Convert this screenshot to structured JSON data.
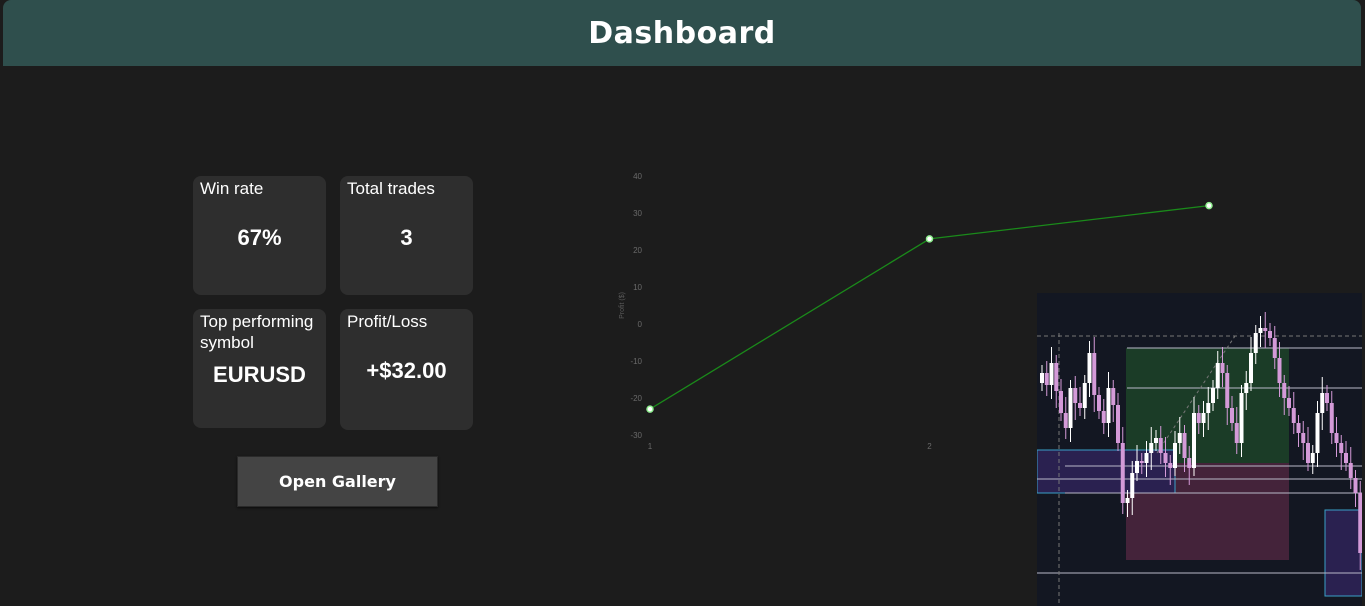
{
  "header": {
    "title": "Dashboard"
  },
  "stats": {
    "win_rate": {
      "label": "Win rate",
      "value": "67%"
    },
    "total_trades": {
      "label": "Total trades",
      "value": "3"
    },
    "top_symbol": {
      "label": "Top performing symbol",
      "value": "EURUSD"
    },
    "profit_loss": {
      "label": "Profit/Loss",
      "value": "+$32.00"
    }
  },
  "gallery_button": {
    "label": "Open Gallery"
  },
  "colors": {
    "header_bg": "#2f4f4d",
    "card_bg": "#2e2e2e",
    "line": "#1a8a1a",
    "point": "#90ee90"
  },
  "chart_data": {
    "type": "line",
    "ylabel": "Profit ($)",
    "xlabel": "",
    "x": [
      1,
      2,
      3
    ],
    "x_tick_labels": [
      "1",
      "2"
    ],
    "y_ticks": [
      40,
      30,
      20,
      10,
      0,
      -10,
      -20,
      -30
    ],
    "ylim": [
      -30,
      40
    ],
    "series": [
      {
        "values": [
          -23,
          23,
          32
        ]
      }
    ],
    "grid": false,
    "legend": "none"
  },
  "thumbnail": {
    "kind": "candlestick-chart-image"
  }
}
